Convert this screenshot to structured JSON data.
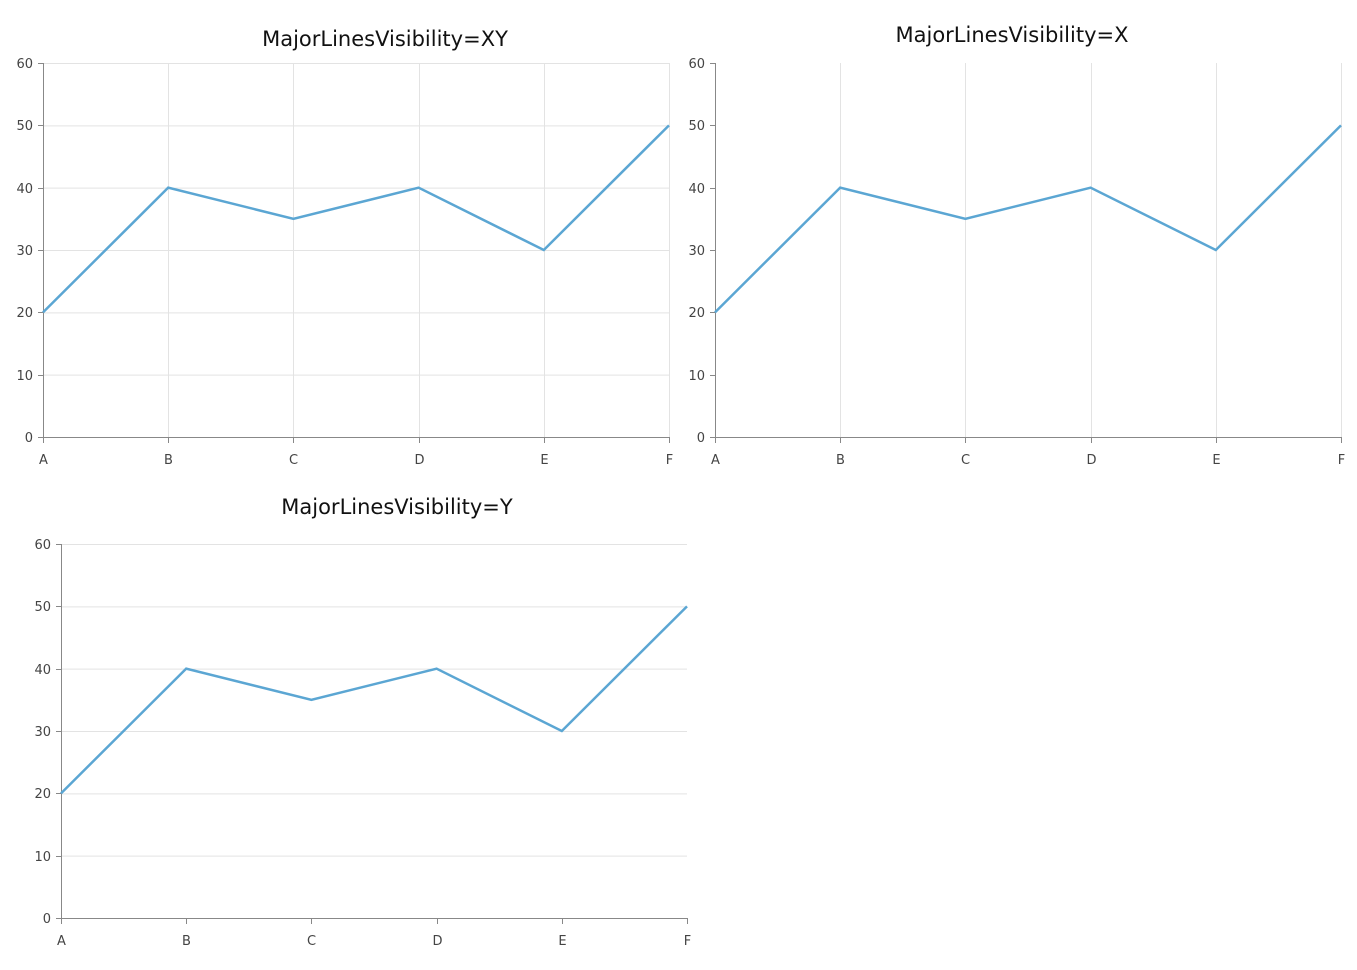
{
  "chart_data": [
    {
      "type": "line",
      "title": "MajorLinesVisibility=XY",
      "major_lines": "XY",
      "categories": [
        "A",
        "B",
        "C",
        "D",
        "E",
        "F"
      ],
      "series": [
        {
          "values": [
            20,
            40,
            35,
            40,
            30,
            50
          ],
          "color": "#5ba6d3"
        }
      ],
      "y_ticks": [
        "0",
        "10",
        "20",
        "30",
        "40",
        "50",
        "60"
      ],
      "ylim": [
        0,
        60
      ],
      "x_grid": true,
      "y_grid": true,
      "legend": "none"
    },
    {
      "type": "line",
      "title": "MajorLinesVisibility=X",
      "major_lines": "X",
      "categories": [
        "A",
        "B",
        "C",
        "D",
        "E",
        "F"
      ],
      "series": [
        {
          "values": [
            20,
            40,
            35,
            40,
            30,
            50
          ],
          "color": "#5ba6d3"
        }
      ],
      "y_ticks": [
        "0",
        "10",
        "20",
        "30",
        "40",
        "50",
        "60"
      ],
      "ylim": [
        0,
        60
      ],
      "x_grid": true,
      "y_grid": false,
      "legend": "none"
    },
    {
      "type": "line",
      "title": "MajorLinesVisibility=Y",
      "major_lines": "Y",
      "categories": [
        "A",
        "B",
        "C",
        "D",
        "E",
        "F"
      ],
      "series": [
        {
          "values": [
            20,
            40,
            35,
            40,
            30,
            50
          ],
          "color": "#5ba6d3"
        }
      ],
      "y_ticks": [
        "0",
        "10",
        "20",
        "30",
        "40",
        "50",
        "60"
      ],
      "ylim": [
        0,
        60
      ],
      "x_grid": false,
      "y_grid": true,
      "legend": "none"
    }
  ],
  "colors": {
    "gridline": "#e3e3e3",
    "axis": "#888888",
    "tick_label": "#444444",
    "title": "#111111"
  }
}
